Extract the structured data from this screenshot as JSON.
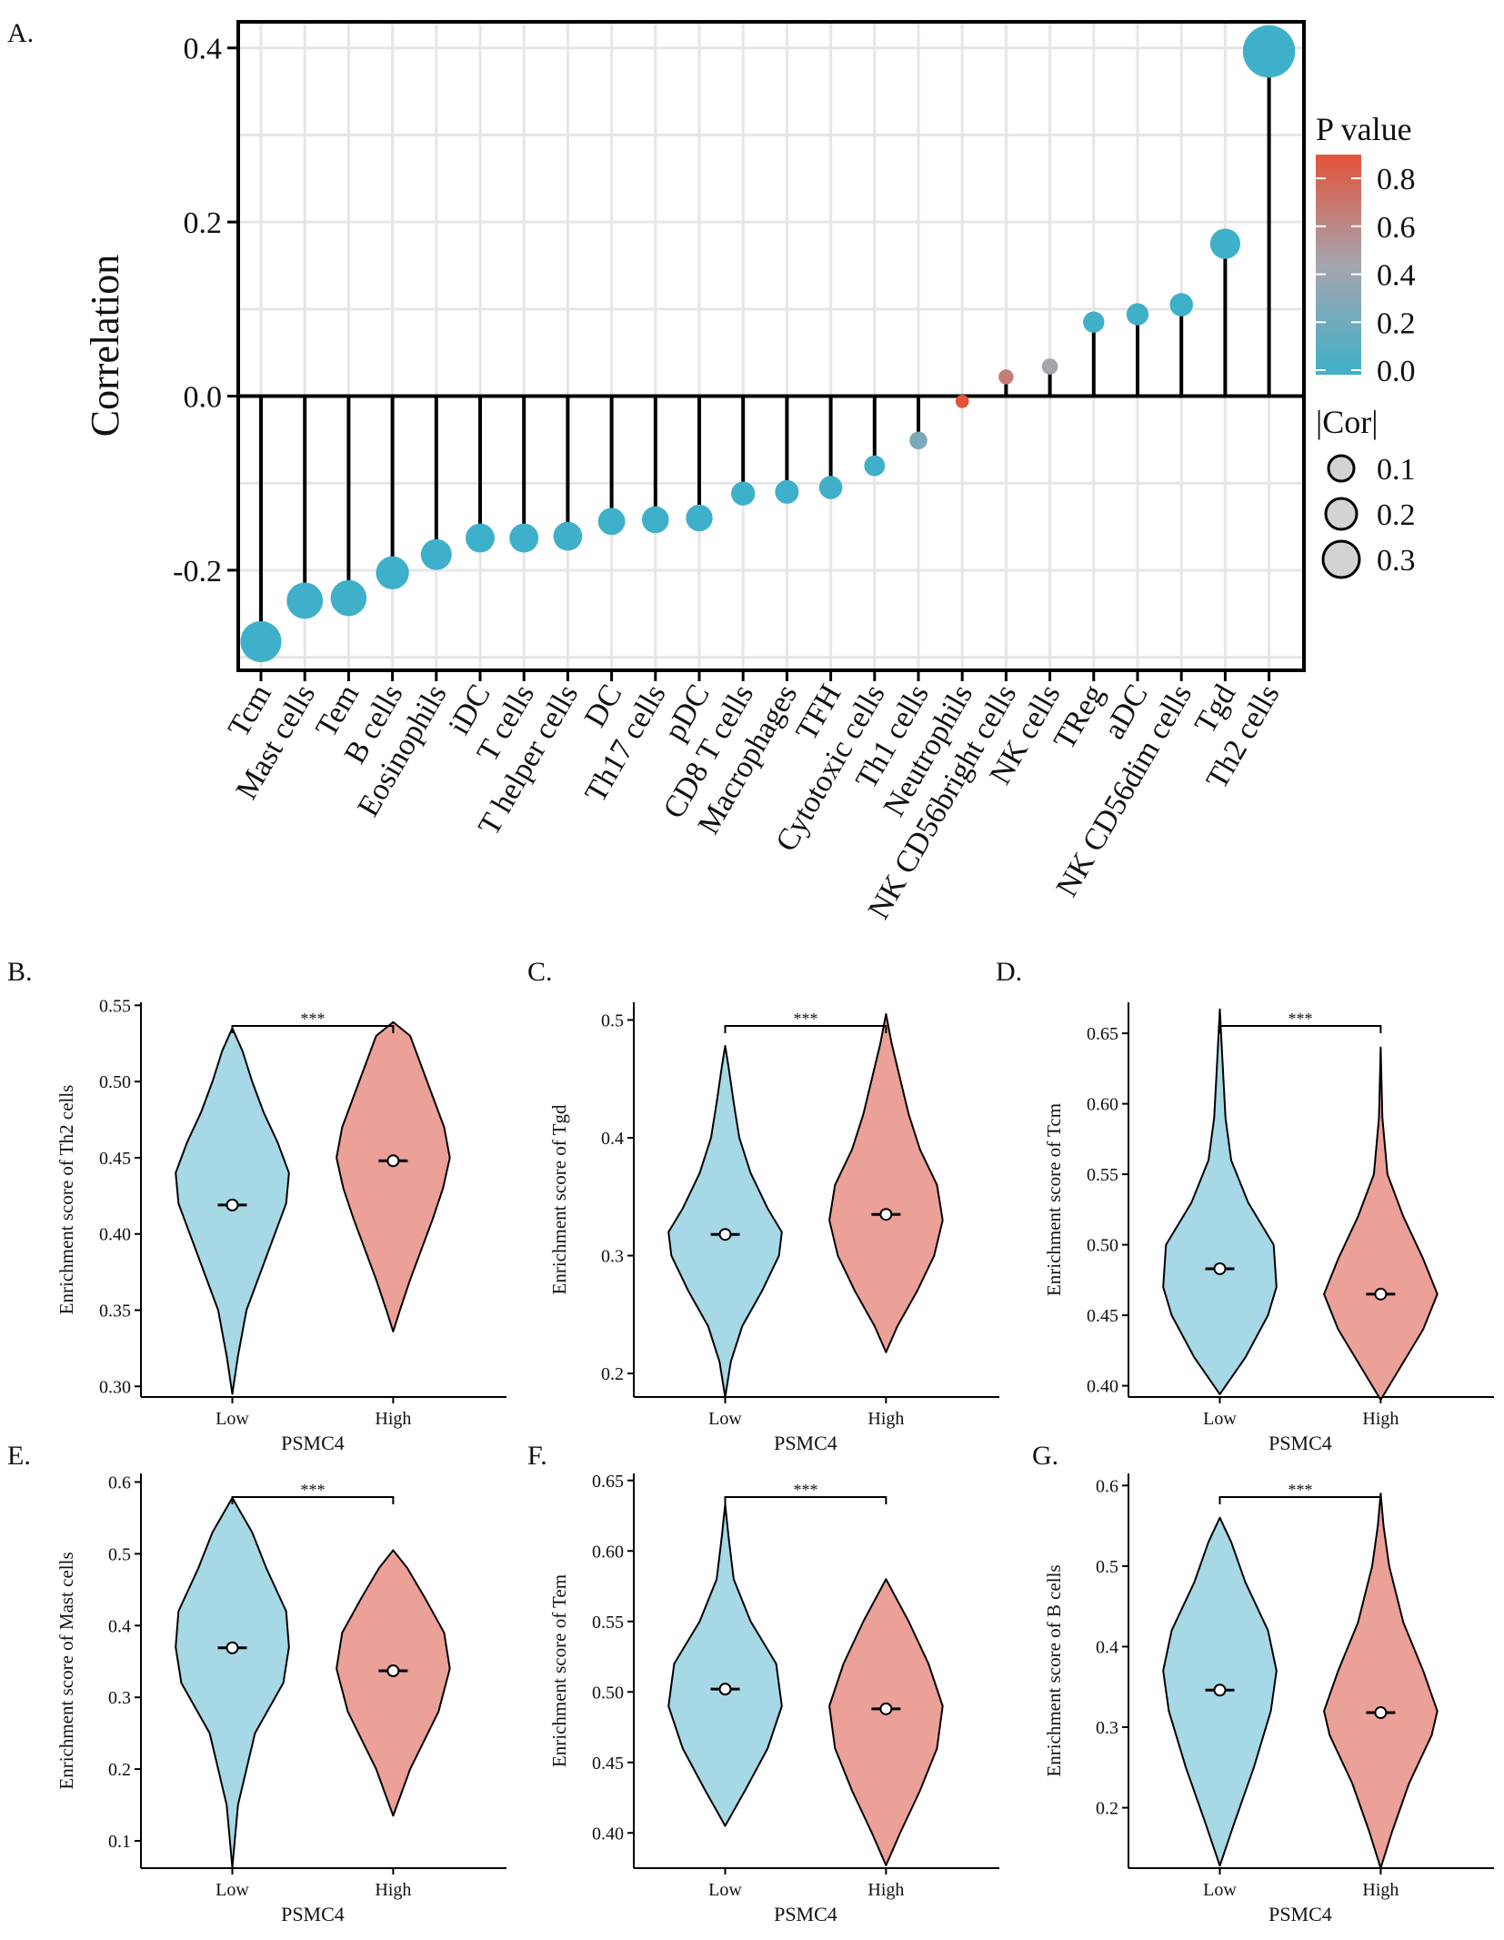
{
  "colors": {
    "low_p": "#3FB0C9",
    "high_p": "#E4533A",
    "violin_low": "#A6D8E6",
    "violin_high": "#EBA098"
  },
  "chart_data": [
    {
      "type": "lollipop",
      "panel": "A.",
      "title": "",
      "xlabel": "",
      "ylabel": "Correlation",
      "ylim": [
        -0.315,
        0.43
      ],
      "yticks": [
        0.4,
        0.2,
        0.0,
        -0.2
      ],
      "ytick_labels": [
        "0.4",
        "0.2",
        "0.0",
        "-0.2"
      ],
      "categories": [
        "Tcm",
        "Mast cells",
        "Tem",
        "B cells",
        "Eosinophils",
        "iDC",
        "T cells",
        "T helper cells",
        "DC",
        "Th17 cells",
        "pDC",
        "CD8 T cells",
        "Macrophages",
        "TFH",
        "Cytotoxic cells",
        "Th1 cells",
        "Neutrophils",
        "NK CD56bright cells",
        "NK cells",
        "TReg",
        "aDC",
        "NK CD56dim cells",
        "Tgd",
        "Th2 cells"
      ],
      "values": [
        -0.282,
        -0.235,
        -0.232,
        -0.203,
        -0.182,
        -0.163,
        -0.163,
        -0.161,
        -0.144,
        -0.142,
        -0.14,
        -0.112,
        -0.11,
        -0.105,
        -0.08,
        -0.051,
        -0.006,
        0.022,
        0.034,
        0.085,
        0.094,
        0.105,
        0.175,
        0.396
      ],
      "pvalues": [
        0,
        0,
        0,
        0,
        0,
        0,
        0,
        0,
        0,
        0,
        0,
        0,
        0,
        0,
        0.003,
        0.25,
        0.88,
        0.65,
        0.45,
        0.01,
        0.006,
        0.001,
        0,
        0
      ],
      "legend": {
        "color_title": "P value",
        "color_ticks": [
          "0.8",
          "0.6",
          "0.4",
          "0.2",
          "0.0"
        ],
        "size_title": "|Cor|",
        "size_labels": [
          "0.1",
          "0.2",
          "0.3"
        ]
      }
    },
    {
      "type": "violin",
      "panel": "B.",
      "xlabel": "PSMC4",
      "ylabel": "Enrichment score of Th2 cells",
      "categories": [
        "Low",
        "High"
      ],
      "ylim": [
        0.293,
        0.552
      ],
      "yticks": [
        0.3,
        0.35,
        0.4,
        0.45,
        0.5,
        0.55
      ],
      "ytick_labels": [
        "0.30",
        "0.35",
        "0.40",
        "0.45",
        "0.50",
        "0.55"
      ],
      "medians": [
        0.419,
        0.448
      ],
      "significance": "***",
      "low": {
        "min": 0.295,
        "max": 0.535,
        "shape": [
          [
            0.295,
            0.0
          ],
          [
            0.32,
            0.1
          ],
          [
            0.35,
            0.25
          ],
          [
            0.38,
            0.55
          ],
          [
            0.4,
            0.75
          ],
          [
            0.42,
            0.95
          ],
          [
            0.44,
            1.0
          ],
          [
            0.46,
            0.8
          ],
          [
            0.48,
            0.55
          ],
          [
            0.5,
            0.35
          ],
          [
            0.52,
            0.18
          ],
          [
            0.535,
            0.0
          ]
        ]
      },
      "high": {
        "min": 0.336,
        "max": 0.539,
        "shape": [
          [
            0.336,
            0.0
          ],
          [
            0.35,
            0.12
          ],
          [
            0.37,
            0.3
          ],
          [
            0.39,
            0.5
          ],
          [
            0.41,
            0.7
          ],
          [
            0.43,
            0.88
          ],
          [
            0.45,
            1.0
          ],
          [
            0.47,
            0.9
          ],
          [
            0.49,
            0.7
          ],
          [
            0.51,
            0.5
          ],
          [
            0.53,
            0.3
          ],
          [
            0.539,
            0.0
          ]
        ]
      }
    },
    {
      "type": "violin",
      "panel": "C.",
      "xlabel": "PSMC4",
      "ylabel": "Enrichment score of Tgd",
      "categories": [
        "Low",
        "High"
      ],
      "ylim": [
        0.18,
        0.515
      ],
      "yticks": [
        0.2,
        0.3,
        0.4,
        0.5
      ],
      "ytick_labels": [
        "0.2",
        "0.3",
        "0.4",
        "0.5"
      ],
      "medians": [
        0.318,
        0.335
      ],
      "significance": "***",
      "low": {
        "min": 0.18,
        "max": 0.478,
        "shape": [
          [
            0.18,
            0.0
          ],
          [
            0.21,
            0.1
          ],
          [
            0.24,
            0.3
          ],
          [
            0.27,
            0.65
          ],
          [
            0.3,
            0.95
          ],
          [
            0.32,
            1.0
          ],
          [
            0.34,
            0.75
          ],
          [
            0.37,
            0.45
          ],
          [
            0.4,
            0.25
          ],
          [
            0.43,
            0.15
          ],
          [
            0.46,
            0.06
          ],
          [
            0.478,
            0.0
          ]
        ]
      },
      "high": {
        "min": 0.218,
        "max": 0.505,
        "shape": [
          [
            0.218,
            0.0
          ],
          [
            0.24,
            0.2
          ],
          [
            0.27,
            0.55
          ],
          [
            0.3,
            0.85
          ],
          [
            0.33,
            1.0
          ],
          [
            0.36,
            0.9
          ],
          [
            0.39,
            0.6
          ],
          [
            0.42,
            0.4
          ],
          [
            0.45,
            0.25
          ],
          [
            0.48,
            0.1
          ],
          [
            0.505,
            0.0
          ]
        ]
      }
    },
    {
      "type": "violin",
      "panel": "D.",
      "xlabel": "PSMC4",
      "ylabel": "Enrichment score of Tcm",
      "categories": [
        "Low",
        "High"
      ],
      "ylim": [
        0.392,
        0.672
      ],
      "yticks": [
        0.4,
        0.45,
        0.5,
        0.55,
        0.6,
        0.65
      ],
      "ytick_labels": [
        "0.40",
        "0.45",
        "0.50",
        "0.55",
        "0.60",
        "0.65"
      ],
      "medians": [
        0.483,
        0.465
      ],
      "significance": "***",
      "low": {
        "min": 0.394,
        "max": 0.667,
        "shape": [
          [
            0.394,
            0.0
          ],
          [
            0.42,
            0.45
          ],
          [
            0.45,
            0.85
          ],
          [
            0.47,
            1.0
          ],
          [
            0.5,
            0.95
          ],
          [
            0.53,
            0.5
          ],
          [
            0.56,
            0.2
          ],
          [
            0.59,
            0.1
          ],
          [
            0.62,
            0.06
          ],
          [
            0.667,
            0.0
          ]
        ]
      },
      "high": {
        "min": 0.39,
        "max": 0.64,
        "shape": [
          [
            0.39,
            0.0
          ],
          [
            0.41,
            0.3
          ],
          [
            0.44,
            0.75
          ],
          [
            0.465,
            1.0
          ],
          [
            0.49,
            0.75
          ],
          [
            0.52,
            0.4
          ],
          [
            0.55,
            0.12
          ],
          [
            0.59,
            0.03
          ],
          [
            0.64,
            0.0
          ]
        ]
      }
    },
    {
      "type": "violin",
      "panel": "E.",
      "xlabel": "PSMC4",
      "ylabel": "Enrichment score of Mast cells",
      "categories": [
        "Low",
        "High"
      ],
      "ylim": [
        0.062,
        0.612
      ],
      "yticks": [
        0.1,
        0.2,
        0.3,
        0.4,
        0.5,
        0.6
      ],
      "ytick_labels": [
        "0.1",
        "0.2",
        "0.3",
        "0.4",
        "0.5",
        "0.6"
      ],
      "medians": [
        0.369,
        0.337
      ],
      "significance": "***",
      "low": {
        "min": 0.063,
        "max": 0.578,
        "shape": [
          [
            0.063,
            0.0
          ],
          [
            0.15,
            0.1
          ],
          [
            0.25,
            0.4
          ],
          [
            0.32,
            0.9
          ],
          [
            0.37,
            1.0
          ],
          [
            0.42,
            0.95
          ],
          [
            0.48,
            0.6
          ],
          [
            0.53,
            0.35
          ],
          [
            0.578,
            0.0
          ]
        ]
      },
      "high": {
        "min": 0.135,
        "max": 0.505,
        "shape": [
          [
            0.135,
            0.0
          ],
          [
            0.2,
            0.3
          ],
          [
            0.28,
            0.8
          ],
          [
            0.34,
            1.0
          ],
          [
            0.39,
            0.9
          ],
          [
            0.44,
            0.55
          ],
          [
            0.48,
            0.25
          ],
          [
            0.505,
            0.0
          ]
        ]
      }
    },
    {
      "type": "violin",
      "panel": "F.",
      "xlabel": "PSMC4",
      "ylabel": "Enrichment score of Tem",
      "categories": [
        "Low",
        "High"
      ],
      "ylim": [
        0.375,
        0.655
      ],
      "yticks": [
        0.4,
        0.45,
        0.5,
        0.55,
        0.6,
        0.65
      ],
      "ytick_labels": [
        "0.40",
        "0.45",
        "0.50",
        "0.55",
        "0.60",
        "0.65"
      ],
      "medians": [
        0.502,
        0.488
      ],
      "significance": "***",
      "low": {
        "min": 0.405,
        "max": 0.633,
        "shape": [
          [
            0.405,
            0.0
          ],
          [
            0.43,
            0.35
          ],
          [
            0.46,
            0.75
          ],
          [
            0.49,
            1.0
          ],
          [
            0.52,
            0.9
          ],
          [
            0.55,
            0.45
          ],
          [
            0.58,
            0.15
          ],
          [
            0.61,
            0.06
          ],
          [
            0.633,
            0.0
          ]
        ]
      },
      "high": {
        "min": 0.377,
        "max": 0.58,
        "shape": [
          [
            0.377,
            0.0
          ],
          [
            0.4,
            0.25
          ],
          [
            0.43,
            0.6
          ],
          [
            0.46,
            0.9
          ],
          [
            0.49,
            1.0
          ],
          [
            0.52,
            0.75
          ],
          [
            0.55,
            0.4
          ],
          [
            0.58,
            0.0
          ]
        ]
      }
    },
    {
      "type": "violin",
      "panel": "G.",
      "xlabel": "PSMC4",
      "ylabel": "Enrichment score of B cells",
      "categories": [
        "Low",
        "High"
      ],
      "ylim": [
        0.125,
        0.615
      ],
      "yticks": [
        0.2,
        0.3,
        0.4,
        0.5,
        0.6
      ],
      "ytick_labels": [
        "0.2",
        "0.3",
        "0.4",
        "0.5",
        "0.6"
      ],
      "medians": [
        0.346,
        0.318
      ],
      "significance": "***",
      "low": {
        "min": 0.128,
        "max": 0.56,
        "shape": [
          [
            0.128,
            0.0
          ],
          [
            0.18,
            0.25
          ],
          [
            0.25,
            0.6
          ],
          [
            0.32,
            0.9
          ],
          [
            0.37,
            1.0
          ],
          [
            0.42,
            0.85
          ],
          [
            0.48,
            0.45
          ],
          [
            0.53,
            0.2
          ],
          [
            0.56,
            0.0
          ]
        ]
      },
      "high": {
        "min": 0.125,
        "max": 0.59,
        "shape": [
          [
            0.125,
            0.0
          ],
          [
            0.17,
            0.2
          ],
          [
            0.23,
            0.5
          ],
          [
            0.29,
            0.9
          ],
          [
            0.32,
            1.0
          ],
          [
            0.37,
            0.75
          ],
          [
            0.43,
            0.4
          ],
          [
            0.5,
            0.15
          ],
          [
            0.55,
            0.05
          ],
          [
            0.59,
            0.0
          ]
        ]
      }
    }
  ]
}
